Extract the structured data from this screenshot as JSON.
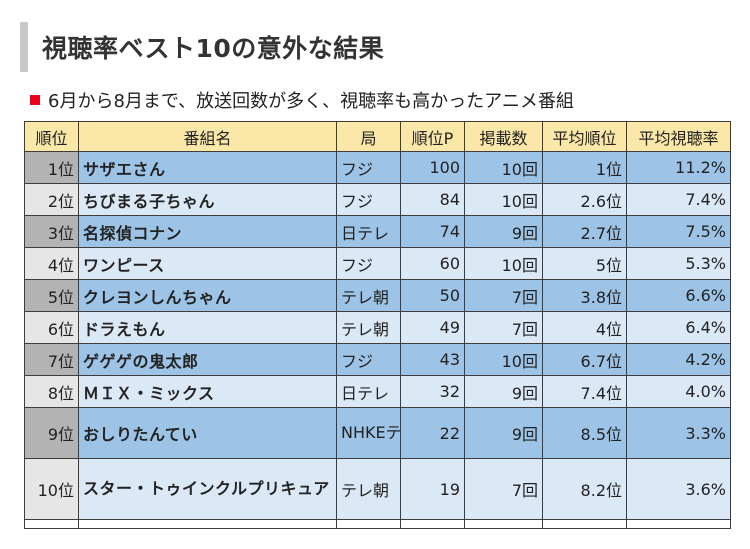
{
  "heading": "視聴率ベスト10の意外な結果",
  "subtitle": "6月から8月まで、放送回数が多く、視聴率も高かったアニメ番組",
  "colors": {
    "bullet": "#e8001c",
    "header_bg": "#fbe8a8",
    "row_dark": "#9dc3e6",
    "row_light": "#dbe8f5",
    "rank_dark": "#b3b3b3",
    "rank_light": "#e6e6e6"
  },
  "table": {
    "headers": [
      "順位",
      "番組名",
      "局",
      "順位P",
      "掲載数",
      "平均順位",
      "平均視聴率"
    ],
    "rows": [
      {
        "rank": "1位",
        "title": "サザエさん",
        "station": "フジ",
        "points": "100",
        "count": "10回",
        "avg_rank": "1位",
        "avg_rating": "11.2%"
      },
      {
        "rank": "2位",
        "title": "ちびまる子ちゃん",
        "station": "フジ",
        "points": "84",
        "count": "10回",
        "avg_rank": "2.6位",
        "avg_rating": "7.4%"
      },
      {
        "rank": "3位",
        "title": "名探偵コナン",
        "station": "日テレ",
        "points": "74",
        "count": "9回",
        "avg_rank": "2.7位",
        "avg_rating": "7.5%"
      },
      {
        "rank": "4位",
        "title": "ワンピース",
        "station": "フジ",
        "points": "60",
        "count": "10回",
        "avg_rank": "5位",
        "avg_rating": "5.3%"
      },
      {
        "rank": "5位",
        "title": "クレヨンしんちゃん",
        "station": "テレ朝",
        "points": "50",
        "count": "7回",
        "avg_rank": "3.8位",
        "avg_rating": "6.6%"
      },
      {
        "rank": "6位",
        "title": "ドラえもん",
        "station": "テレ朝",
        "points": "49",
        "count": "7回",
        "avg_rank": "4位",
        "avg_rating": "6.4%"
      },
      {
        "rank": "7位",
        "title": "ゲゲゲの鬼太郎",
        "station": "フジ",
        "points": "43",
        "count": "10回",
        "avg_rank": "6.7位",
        "avg_rating": "4.2%"
      },
      {
        "rank": "8位",
        "title": "ＭＩＸ・ミックス",
        "station": "日テレ",
        "points": "32",
        "count": "9回",
        "avg_rank": "7.4位",
        "avg_rating": "4.0%"
      },
      {
        "rank": "9位",
        "title": "おしりたんてい",
        "station": "NHKEテレ",
        "points": "22",
        "count": "9回",
        "avg_rank": "8.5位",
        "avg_rating": "3.3%"
      },
      {
        "rank": "10位",
        "title": "スター・トゥインクルプリキュア",
        "station": "テレ朝",
        "points": "19",
        "count": "7回",
        "avg_rank": "8.2位",
        "avg_rating": "3.6%"
      }
    ]
  }
}
